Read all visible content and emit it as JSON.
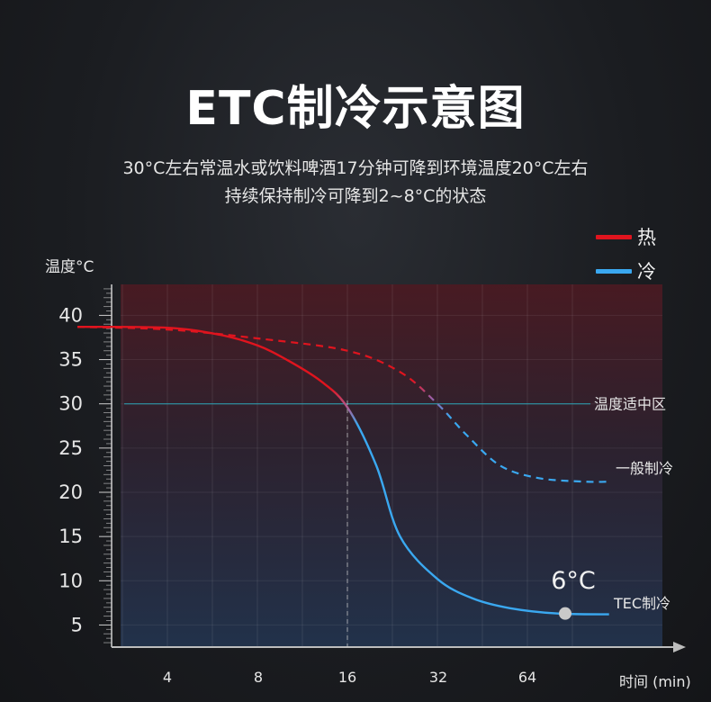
{
  "title": "ETC制冷示意图",
  "subtitle_line1": "30°C左右常温水或饮料啤酒17分钟可降到环境温度20°C左右",
  "subtitle_line2": "持续保持制冷可降到2~8°C的状态",
  "colors": {
    "hot": "#e0141e",
    "cold": "#3aa8f0",
    "band_top": "#4a1a22",
    "band_bottom": "#22334d",
    "guide": "#2aa6b8"
  },
  "chart_data": {
    "type": "line",
    "ylabel": "温度°C",
    "xlabel": "时间 (min)",
    "x_ticks": [
      "4",
      "8",
      "16",
      "32",
      "64"
    ],
    "y_ticks": [
      40,
      35,
      30,
      25,
      20,
      15,
      10,
      5
    ],
    "ylim": [
      2.5,
      43.5
    ],
    "legend": {
      "position": "top-right",
      "entries": [
        {
          "name": "热",
          "color": "#e0141e"
        },
        {
          "name": "冷",
          "color": "#3aa8f0"
        }
      ]
    },
    "reference_line": {
      "y": 30,
      "label": "温度适中区"
    },
    "marker_x": "16",
    "series": [
      {
        "name": "TEC制冷",
        "style": "solid",
        "points": [
          [
            2,
            38.7
          ],
          [
            4,
            38.6
          ],
          [
            6,
            37.8
          ],
          [
            8,
            36.6
          ],
          [
            10,
            35.0
          ],
          [
            13,
            32.6
          ],
          [
            16,
            29.6
          ],
          [
            20,
            23.0
          ],
          [
            24,
            15.0
          ],
          [
            32,
            10.2
          ],
          [
            42,
            8.0
          ],
          [
            56,
            6.9
          ],
          [
            80,
            6.3
          ],
          [
            120,
            6.2
          ]
        ],
        "end_label": "TEC制冷"
      },
      {
        "name": "一般制冷",
        "style": "dashed",
        "points": [
          [
            2,
            38.7
          ],
          [
            4,
            38.4
          ],
          [
            8,
            37.4
          ],
          [
            16,
            36.0
          ],
          [
            24,
            33.6
          ],
          [
            32,
            30.0
          ],
          [
            40,
            26.5
          ],
          [
            52,
            23.0
          ],
          [
            70,
            21.6
          ],
          [
            100,
            21.2
          ],
          [
            120,
            21.2
          ]
        ],
        "end_label": "一般制冷"
      }
    ],
    "annotation": {
      "label": "6°C",
      "x": 80,
      "y": 6.3
    }
  }
}
